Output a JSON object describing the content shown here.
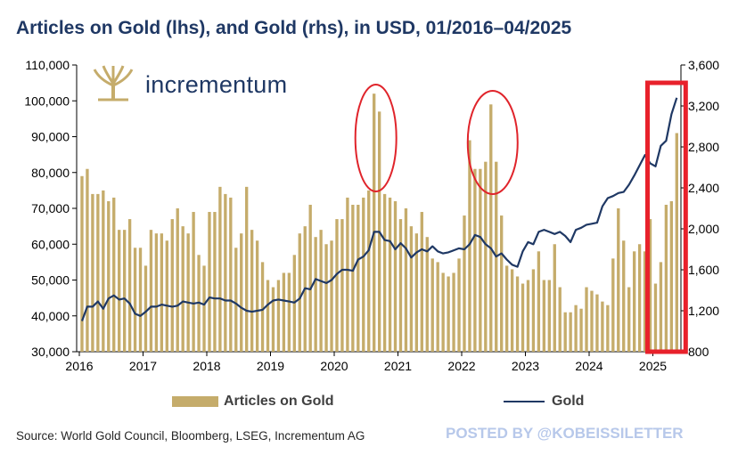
{
  "title": "Articles on Gold (lhs), and Gold (rhs), in USD, 01/2016–04/2025",
  "brand": "incrementum",
  "legend": {
    "bars_label": "Articles on Gold",
    "line_label": "Gold"
  },
  "source": "Source: World Gold Council, Bloomberg, LSEG, Incrementum AG",
  "watermark": "POSTED BY @KOBEISSILETTER",
  "colors": {
    "bars": "#c5ac6b",
    "line": "#1f3864",
    "highlight": "#e8212b",
    "ellipse": "#e0242b",
    "watermark": "#b7c8ea"
  },
  "chart_data": {
    "type": "bar",
    "xticks": [
      "2016",
      "2017",
      "2018",
      "2019",
      "2020",
      "2021",
      "2022",
      "2023",
      "2024",
      "2025"
    ],
    "y_left": {
      "label": "",
      "min": 30000,
      "max": 110000,
      "ticks": [
        "30,000",
        "40,000",
        "50,000",
        "60,000",
        "70,000",
        "80,000",
        "90,000",
        "100,000",
        "110,000"
      ]
    },
    "y_right": {
      "label": "",
      "min": 800,
      "max": 3600,
      "ticks": [
        "800",
        "1,200",
        "1,600",
        "2,000",
        "2,400",
        "2,800",
        "3,200",
        "3,600"
      ]
    },
    "x_start": "2016-01",
    "x_end": "2025-04",
    "series": [
      {
        "name": "Articles on Gold",
        "type": "bar",
        "axis": "left",
        "values": [
          79000,
          81000,
          74000,
          74000,
          75000,
          72000,
          73000,
          64000,
          64000,
          67000,
          59000,
          59000,
          54000,
          64000,
          63000,
          63000,
          61000,
          67000,
          70000,
          65000,
          63000,
          69000,
          57000,
          54000,
          69000,
          69000,
          76000,
          74000,
          73000,
          59000,
          63000,
          76000,
          64000,
          61000,
          55000,
          50000,
          48000,
          50000,
          52000,
          52000,
          57000,
          63000,
          65000,
          71000,
          62000,
          64000,
          60000,
          61000,
          67000,
          67000,
          73000,
          71000,
          71000,
          73000,
          75000,
          102000,
          97000,
          74000,
          73000,
          72000,
          67000,
          70000,
          65000,
          63000,
          69000,
          62000,
          56000,
          55000,
          52000,
          51000,
          52000,
          56000,
          68000,
          89000,
          81000,
          81000,
          83000,
          99000,
          83000,
          68000,
          54000,
          53000,
          51000,
          49000,
          50000,
          53000,
          58000,
          50000,
          50000,
          60000,
          48000,
          41000,
          41000,
          43000,
          42000,
          48000,
          47000,
          46000,
          44000,
          43000,
          56000,
          70000,
          61000,
          48000,
          58000,
          60000,
          58000,
          67000,
          49000,
          55000,
          71000,
          72000,
          91000
        ]
      },
      {
        "name": "Gold",
        "type": "line",
        "axis": "right",
        "values": [
          1100,
          1240,
          1240,
          1290,
          1220,
          1320,
          1350,
          1310,
          1320,
          1270,
          1170,
          1150,
          1190,
          1240,
          1240,
          1260,
          1250,
          1240,
          1250,
          1290,
          1280,
          1270,
          1280,
          1260,
          1330,
          1320,
          1320,
          1300,
          1300,
          1270,
          1230,
          1200,
          1190,
          1200,
          1210,
          1260,
          1300,
          1310,
          1300,
          1290,
          1280,
          1320,
          1420,
          1410,
          1510,
          1490,
          1470,
          1500,
          1560,
          1600,
          1600,
          1590,
          1700,
          1730,
          1790,
          1970,
          1970,
          1890,
          1880,
          1800,
          1860,
          1810,
          1720,
          1770,
          1800,
          1780,
          1830,
          1780,
          1760,
          1770,
          1790,
          1810,
          1800,
          1850,
          1940,
          1920,
          1850,
          1810,
          1730,
          1760,
          1700,
          1650,
          1630,
          1780,
          1870,
          1850,
          1970,
          1990,
          1970,
          1950,
          1970,
          1930,
          1870,
          1990,
          2010,
          2040,
          2050,
          2060,
          2220,
          2300,
          2320,
          2350,
          2360,
          2430,
          2520,
          2620,
          2720,
          2640,
          2610,
          2810,
          2860,
          3120,
          3280
        ]
      }
    ],
    "annotations": [
      {
        "type": "ellipse",
        "around": "2020-08 peak"
      },
      {
        "type": "ellipse",
        "around": "2022-03 peak"
      },
      {
        "type": "rectangle",
        "around": "2024-12 to 2025-04"
      }
    ]
  }
}
